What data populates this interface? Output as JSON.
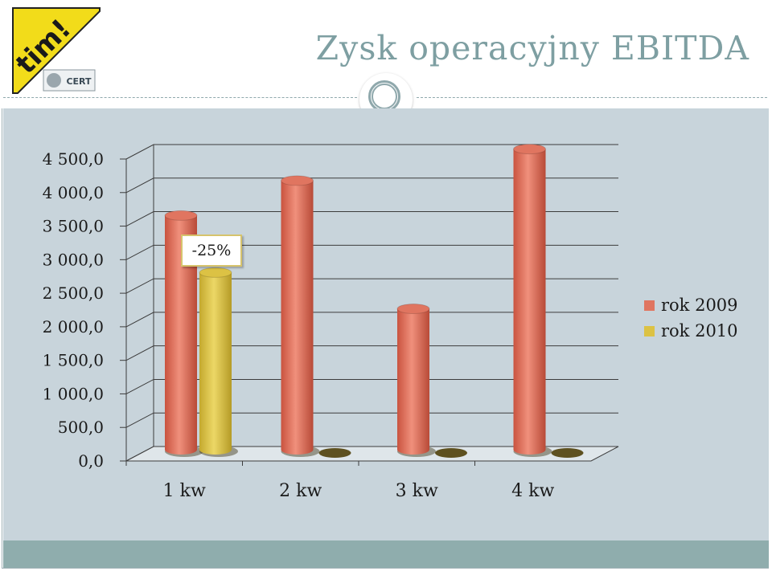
{
  "header": {
    "title": "Zysk operacyjny EBITDA",
    "logo_text": "tim!",
    "cert_text": "CERT"
  },
  "annotation": {
    "text": "-25%"
  },
  "colors": {
    "series_2009": "#e07560",
    "series_2010": "#dcc244",
    "panel": "#c8d4db",
    "footer": "#8fadad",
    "title": "#7e9fa2"
  },
  "chart_data": {
    "type": "bar",
    "categories": [
      "1 kw",
      "2 kw",
      "3 kw",
      "4 kw"
    ],
    "series": [
      {
        "name": "rok 2009",
        "values": [
          3550,
          4070,
          2160,
          4540
        ]
      },
      {
        "name": "rok 2010",
        "values": [
          2700,
          0,
          0,
          0
        ]
      }
    ],
    "y_tick_labels": [
      "0,0",
      "500,0",
      "1 000,0",
      "1 500,0",
      "2 000,0",
      "2 500,0",
      "3 000,0",
      "3 500,0",
      "4 000,0",
      "4 500,0"
    ],
    "ylim": [
      0,
      4500
    ],
    "grid": true,
    "legend_position": "right",
    "style": "3d-cylinder"
  }
}
